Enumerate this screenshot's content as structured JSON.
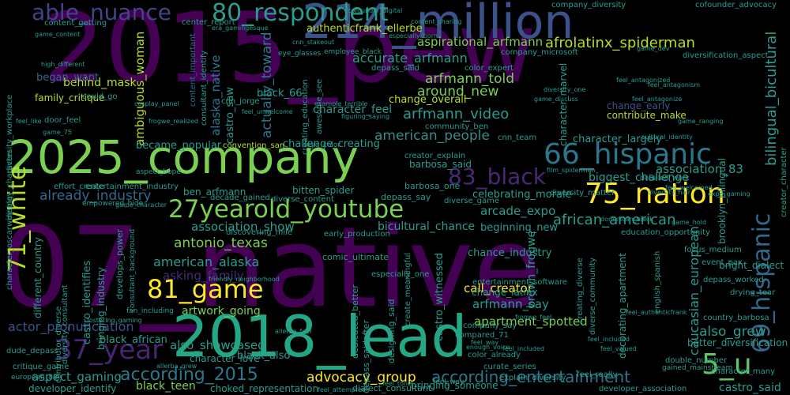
{
  "background": "#000000",
  "palette": {
    "deep_purple": "#440154",
    "indigo": "#3b528b",
    "blue": "#31688e",
    "teal": "#21918c",
    "green": "#35b779",
    "lime": "#90d743",
    "yellow": "#fde725"
  },
  "words": [
    {
      "text": "07_native",
      "color": "#440154"
    },
    {
      "text": "2015_pew",
      "color": "#440154"
    },
    {
      "text": "2025_company",
      "color": "#7ad151"
    },
    {
      "text": "2018_lead",
      "color": "#22a884"
    },
    {
      "text": "214_million",
      "color": "#3b528b"
    },
    {
      "text": "80_respondent",
      "color": "#2a9d8f"
    },
    {
      "text": "able_nuance",
      "color": "#414487"
    },
    {
      "text": "27yearold_youtube",
      "color": "#7ad151"
    },
    {
      "text": "66_hispanic",
      "color": "#2a788e"
    },
    {
      "text": "83_black",
      "color": "#482878"
    },
    {
      "text": "75_nation",
      "color": "#fde725"
    },
    {
      "text": "69_hispanic",
      "color": "#31688e"
    },
    {
      "text": "81_game",
      "color": "#fde725"
    },
    {
      "text": "37_year",
      "color": "#482475"
    },
    {
      "text": "5_u",
      "color": "#5ec962"
    },
    {
      "text": "71_white",
      "color": "#b5de2b"
    },
    {
      "text": "according_2015",
      "color": "#2a788e"
    },
    {
      "text": "according_entertainment",
      "color": "#2a788e"
    },
    {
      "text": "afrolatinx_spiderman",
      "color": "#b5de2b"
    },
    {
      "text": "aspirational_arfmann",
      "color": "#7ad151"
    },
    {
      "text": "accurate_arfmann",
      "color": "#2a9d8f"
    },
    {
      "text": "arfmann_told",
      "color": "#7ad151"
    },
    {
      "text": "around_new",
      "color": "#7ad151"
    },
    {
      "text": "arfmann_video",
      "color": "#2a9d8f"
    },
    {
      "text": "american_people",
      "color": "#3b8a8c"
    },
    {
      "text": "ambiguous_woman",
      "color": "#b5de2b"
    },
    {
      "text": "alaska_native",
      "color": "#2a788e"
    },
    {
      "text": "actually_toward",
      "color": "#2a788e"
    },
    {
      "text": "already_industry",
      "color": "#31688e"
    },
    {
      "text": "association_show",
      "color": "#2a9d8f"
    },
    {
      "text": "antonio_texas",
      "color": "#7ad151"
    },
    {
      "text": "american_alaska",
      "color": "#2a9d8f"
    },
    {
      "text": "asking_family",
      "color": "#472c7a"
    },
    {
      "text": "artwork_going",
      "color": "#7ad151"
    },
    {
      "text": "actor_pronunciation",
      "color": "#3b528b"
    },
    {
      "text": "also_showcased",
      "color": "#2a9d8f"
    },
    {
      "text": "advocacy_group",
      "color": "#fde725"
    },
    {
      "text": "aspect_gaming",
      "color": "#2a9d8f"
    },
    {
      "text": "black_teen",
      "color": "#7ad151"
    },
    {
      "text": "african_american",
      "color": "#2a9d8f"
    },
    {
      "text": "arcade_expo",
      "color": "#2a9d8f"
    },
    {
      "text": "association_83",
      "color": "#2a9d8f"
    },
    {
      "text": "biggest_challenge",
      "color": "#2a9d8f"
    },
    {
      "text": "apartment_spotted",
      "color": "#7ad151"
    },
    {
      "text": "also_grew",
      "color": "#2a9d8f"
    },
    {
      "text": "call_creator",
      "color": "#fde725"
    },
    {
      "text": "arfmann_say",
      "color": "#2a9d8f"
    },
    {
      "text": "caucasian_european",
      "color": "#2a9d8f"
    },
    {
      "text": "castro_saw",
      "color": "#2a9d8f"
    },
    {
      "text": "black_66",
      "color": "#2a9d8f"
    },
    {
      "text": "behind_mask",
      "color": "#b5de2b"
    },
    {
      "text": "began_want",
      "color": "#31688e"
    },
    {
      "text": "family_critique",
      "color": "#b5de2b"
    },
    {
      "text": "authenticfrank_ellerbe",
      "color": "#b5de2b"
    },
    {
      "text": "center_report",
      "color": "#2a9d8f"
    },
    {
      "text": "content_getting",
      "color": "#2a9d8f"
    },
    {
      "text": "content_important",
      "color": "#31688e"
    },
    {
      "text": "consultant_identify",
      "color": "#2a9d8f"
    },
    {
      "text": "character_feel",
      "color": "#2a9d8f"
    },
    {
      "text": "change_overall",
      "color": "#b5de2b"
    },
    {
      "text": "community_ben",
      "color": "#2a9d8f"
    },
    {
      "text": "challenge_creating",
      "color": "#2a9d8f"
    },
    {
      "text": "became_popular",
      "color": "#2a9d8f"
    },
    {
      "text": "convention_san",
      "color": "#b5de2b"
    },
    {
      "text": "contribute_make",
      "color": "#b5de2b"
    },
    {
      "text": "change_early",
      "color": "#3b528b"
    },
    {
      "text": "character_largely",
      "color": "#2a9d8f"
    },
    {
      "text": "character_marvel",
      "color": "#2a9d8f"
    },
    {
      "text": "bilingual_bicultural",
      "color": "#2a9d8f"
    },
    {
      "text": "brooklyn_bilingual",
      "color": "#2a9d8f"
    },
    {
      "text": "cnn_team",
      "color": "#2a9d8f"
    },
    {
      "text": "barbosa_said",
      "color": "#2a9d8f"
    },
    {
      "text": "creator_explain",
      "color": "#2a9d8f"
    },
    {
      "text": "barbosa_one",
      "color": "#2a9d8f"
    },
    {
      "text": "bitten_spider",
      "color": "#2a9d8f"
    },
    {
      "text": "ben_arfmann",
      "color": "#2a9d8f"
    },
    {
      "text": "celebrating_morale",
      "color": "#2a9d8f"
    },
    {
      "text": "depass_say",
      "color": "#2a9d8f"
    },
    {
      "text": "diverse_content",
      "color": "#2a9d8f"
    },
    {
      "text": "diverse_game",
      "color": "#2a9d8f"
    },
    {
      "text": "bicultural_chance",
      "color": "#2a9d8f"
    },
    {
      "text": "beginning_new",
      "color": "#2a9d8f"
    },
    {
      "text": "chance_industry",
      "color": "#2a9d8f"
    },
    {
      "text": "change_latinx",
      "color": "#2a9d8f"
    },
    {
      "text": "brown_frogwe",
      "color": "#2a9d8f"
    },
    {
      "text": "castro_identifies",
      "color": "#2a9d8f"
    },
    {
      "text": "bringing_industry",
      "color": "#2a9d8f"
    },
    {
      "text": "castro_witnessed",
      "color": "#2a9d8f"
    },
    {
      "text": "comic_ultimate",
      "color": "#2a9d8f"
    },
    {
      "text": "company_say",
      "color": "#2a9d8f"
    },
    {
      "text": "bringing_someone",
      "color": "#2a9d8f"
    },
    {
      "text": "curate_series",
      "color": "#2a9d8f"
    },
    {
      "text": "color_already",
      "color": "#2a9d8f"
    },
    {
      "text": "black_african",
      "color": "#2a9d8f"
    },
    {
      "text": "character_love",
      "color": "#2a9d8f"
    },
    {
      "text": "black_also",
      "color": "#2a9d8f"
    },
    {
      "text": "choked_representation",
      "color": "#2a9d8f"
    },
    {
      "text": "critique_game",
      "color": "#2a9d8f"
    },
    {
      "text": "developer_identify",
      "color": "#2a9d8f"
    },
    {
      "text": "dude_depass",
      "color": "#2a9d8f"
    },
    {
      "text": "better_diversification",
      "color": "#2a9d8f"
    },
    {
      "text": "castro_said",
      "color": "#2a9d8f"
    },
    {
      "text": "developer_association",
      "color": "#2a9d8f"
    },
    {
      "text": "bright_dialect",
      "color": "#2a9d8f"
    },
    {
      "text": "depass_worked",
      "color": "#2a9d8f"
    },
    {
      "text": "country_barbosa",
      "color": "#2a9d8f"
    },
    {
      "text": "character_many",
      "color": "#2a9d8f"
    },
    {
      "text": "creator_character",
      "color": "#2a9d8f"
    },
    {
      "text": "character_oscarwinning",
      "color": "#2a9d8f"
    },
    {
      "text": "different_country",
      "color": "#2a9d8f"
    },
    {
      "text": "diversity_workplace",
      "color": "#2a9d8f"
    },
    {
      "text": "display_character",
      "color": "#2a9d8f"
    },
    {
      "text": "door_feel",
      "color": "#2a9d8f"
    },
    {
      "text": "cofounder_advocacy",
      "color": "#2a9d8f"
    },
    {
      "text": "company_diversity",
      "color": "#2a9d8f"
    },
    {
      "text": "company_microsoft",
      "color": "#2a9d8f"
    },
    {
      "text": "color_expert",
      "color": "#2a9d8f"
    },
    {
      "text": "depass_said",
      "color": "#2a9d8f"
    },
    {
      "text": "diversification_aspect",
      "color": "#2a9d8f"
    },
    {
      "text": "especially_one",
      "color": "#2a9d8f"
    },
    {
      "text": "entertainment_software",
      "color": "#2a9d8f"
    },
    {
      "text": "early_production",
      "color": "#2a9d8f"
    },
    {
      "text": "discovering_mile",
      "color": "#2a9d8f"
    },
    {
      "text": "education_opportunity",
      "color": "#2a9d8f"
    },
    {
      "text": "event_pax",
      "color": "#2a9d8f"
    },
    {
      "text": "drying_tear",
      "color": "#2a9d8f"
    },
    {
      "text": "dedicated_better",
      "color": "#2a9d8f"
    },
    {
      "text": "designing_said",
      "color": "#2a9d8f"
    },
    {
      "text": "dialect_consultant",
      "color": "#2a9d8f"
    },
    {
      "text": "explain_diversity",
      "color": "#2a9d8f"
    },
    {
      "text": "feel_really",
      "color": "#2a9d8f"
    },
    {
      "text": "double_number",
      "color": "#2a9d8f"
    },
    {
      "text": "gained_mainstream",
      "color": "#2a9d8f"
    },
    {
      "text": "empowered_hide",
      "color": "#2a9d8f"
    },
    {
      "text": "effort_create",
      "color": "#2a9d8f"
    },
    {
      "text": "entertainment_industry",
      "color": "#2a9d8f"
    },
    {
      "text": "decade_gained",
      "color": "#2a9d8f"
    },
    {
      "text": "diversity_consultant",
      "color": "#2a9d8f"
    },
    {
      "text": "develops_power",
      "color": "#2a9d8f"
    },
    {
      "text": "consultant_background",
      "color": "#2a9d8f"
    },
    {
      "text": "create_meaningful",
      "color": "#2a9d8f"
    },
    {
      "text": "decorating_apartment",
      "color": "#2a9d8f"
    },
    {
      "text": "creating_diverse",
      "color": "#2a9d8f"
    },
    {
      "text": "diverse_community",
      "color": "#2a9d8f"
    },
    {
      "text": "english_spanish",
      "color": "#2a9d8f"
    },
    {
      "text": "diversity_matter",
      "color": "#2a9d8f"
    },
    {
      "text": "depass_saidafter",
      "color": "#2a9d8f"
    },
    {
      "text": "compared_71",
      "color": "#2a9d8f"
    },
    {
      "text": "enough_voice",
      "color": "#2a9d8f"
    },
    {
      "text": "european_83",
      "color": "#2a9d8f"
    },
    {
      "text": "fan_including",
      "color": "#2a9d8f"
    },
    {
      "text": "friendly_neighborhood",
      "color": "#2a9d8f"
    },
    {
      "text": "fostering_gaming",
      "color": "#2a9d8f"
    },
    {
      "text": "feel_way",
      "color": "#2a9d8f"
    },
    {
      "text": "creating_education",
      "color": "#2a9d8f"
    },
    {
      "text": "awesome_see",
      "color": "#2a9d8f"
    },
    {
      "text": "employee_black",
      "color": "#2a9d8f"
    },
    {
      "text": "game_content",
      "color": "#2a9d8f"
    },
    {
      "text": "example_terrible",
      "color": "#2a9d8f"
    },
    {
      "text": "feel_authenticfrank",
      "color": "#2a9d8f"
    },
    {
      "text": "film_spiderman",
      "color": "#2a9d8f"
    },
    {
      "text": "dominican_black",
      "color": "#2a9d8f"
    },
    {
      "text": "expo_gaming",
      "color": "#2a9d8f"
    },
    {
      "text": "game_discuss",
      "color": "#2a9d8f"
    },
    {
      "text": "feel_antagonism",
      "color": "#2a9d8f"
    },
    {
      "text": "focus_medium",
      "color": "#2a9d8f"
    },
    {
      "text": "diversity_hair",
      "color": "#2a9d8f"
    },
    {
      "text": "detailed_work",
      "color": "#2a9d8f"
    },
    {
      "text": "game_75",
      "color": "#2a9d8f"
    },
    {
      "text": "game_character",
      "color": "#2a9d8f"
    },
    {
      "text": "cnn_jorge",
      "color": "#2a9d8f"
    },
    {
      "text": "especially_born",
      "color": "#2a9d8f"
    },
    {
      "text": "frogwe_realized",
      "color": "#2a9d8f"
    },
    {
      "text": "eye_glasses",
      "color": "#2a9d8f"
    },
    {
      "text": "game_hold",
      "color": "#2a9d8f"
    },
    {
      "text": "feel_like",
      "color": "#2a9d8f"
    },
    {
      "text": "aspect_hope",
      "color": "#2a9d8f"
    },
    {
      "text": "figuring_saying",
      "color": "#2a9d8f"
    },
    {
      "text": "feel_attempted",
      "color": "#2a9d8f"
    },
    {
      "text": "could_go",
      "color": "#2a9d8f"
    },
    {
      "text": "eye_color",
      "color": "#2a9d8f"
    },
    {
      "text": "era_gamingesque",
      "color": "#2a9d8f"
    },
    {
      "text": "cofounder_digital",
      "color": "#2a9d8f"
    },
    {
      "text": "content_sharing",
      "color": "#2a9d8f"
    },
    {
      "text": "allerba_grew",
      "color": "#2a9d8f"
    },
    {
      "text": "cnn_stakeout",
      "color": "#2a9d8f"
    },
    {
      "text": "game_ranging",
      "color": "#2a9d8f"
    },
    {
      "text": "feel_way",
      "color": "#2a9d8f"
    },
    {
      "text": "feel_antagonized",
      "color": "#2a9d8f"
    },
    {
      "text": "allerba_feel",
      "color": "#2a9d8f"
    },
    {
      "text": "feel_unwelcome",
      "color": "#2a9d8f"
    },
    {
      "text": "feel_included",
      "color": "#2a9d8f"
    },
    {
      "text": "contributor_diverse",
      "color": "#2a9d8f"
    },
    {
      "text": "cosplay_panel",
      "color": "#2a9d8f"
    },
    {
      "text": "high_different",
      "color": "#2a9d8f"
    },
    {
      "text": "feel_tone",
      "color": "#2a9d8f"
    },
    {
      "text": "frogwe_feel",
      "color": "#2a9d8f"
    },
    {
      "text": "cultural_identity",
      "color": "#2a9d8f"
    },
    {
      "text": "feel_welcomed",
      "color": "#2a9d8f"
    },
    {
      "text": "feel_antagonize",
      "color": "#2a9d8f"
    },
    {
      "text": "diversity_one",
      "color": "#2a9d8f"
    },
    {
      "text": "feel_included",
      "color": "#2a9d8f"
    },
    {
      "text": "feel_valued",
      "color": "#2a9d8f"
    },
    {
      "text": "game_dev",
      "color": "#2a9d8f"
    }
  ]
}
